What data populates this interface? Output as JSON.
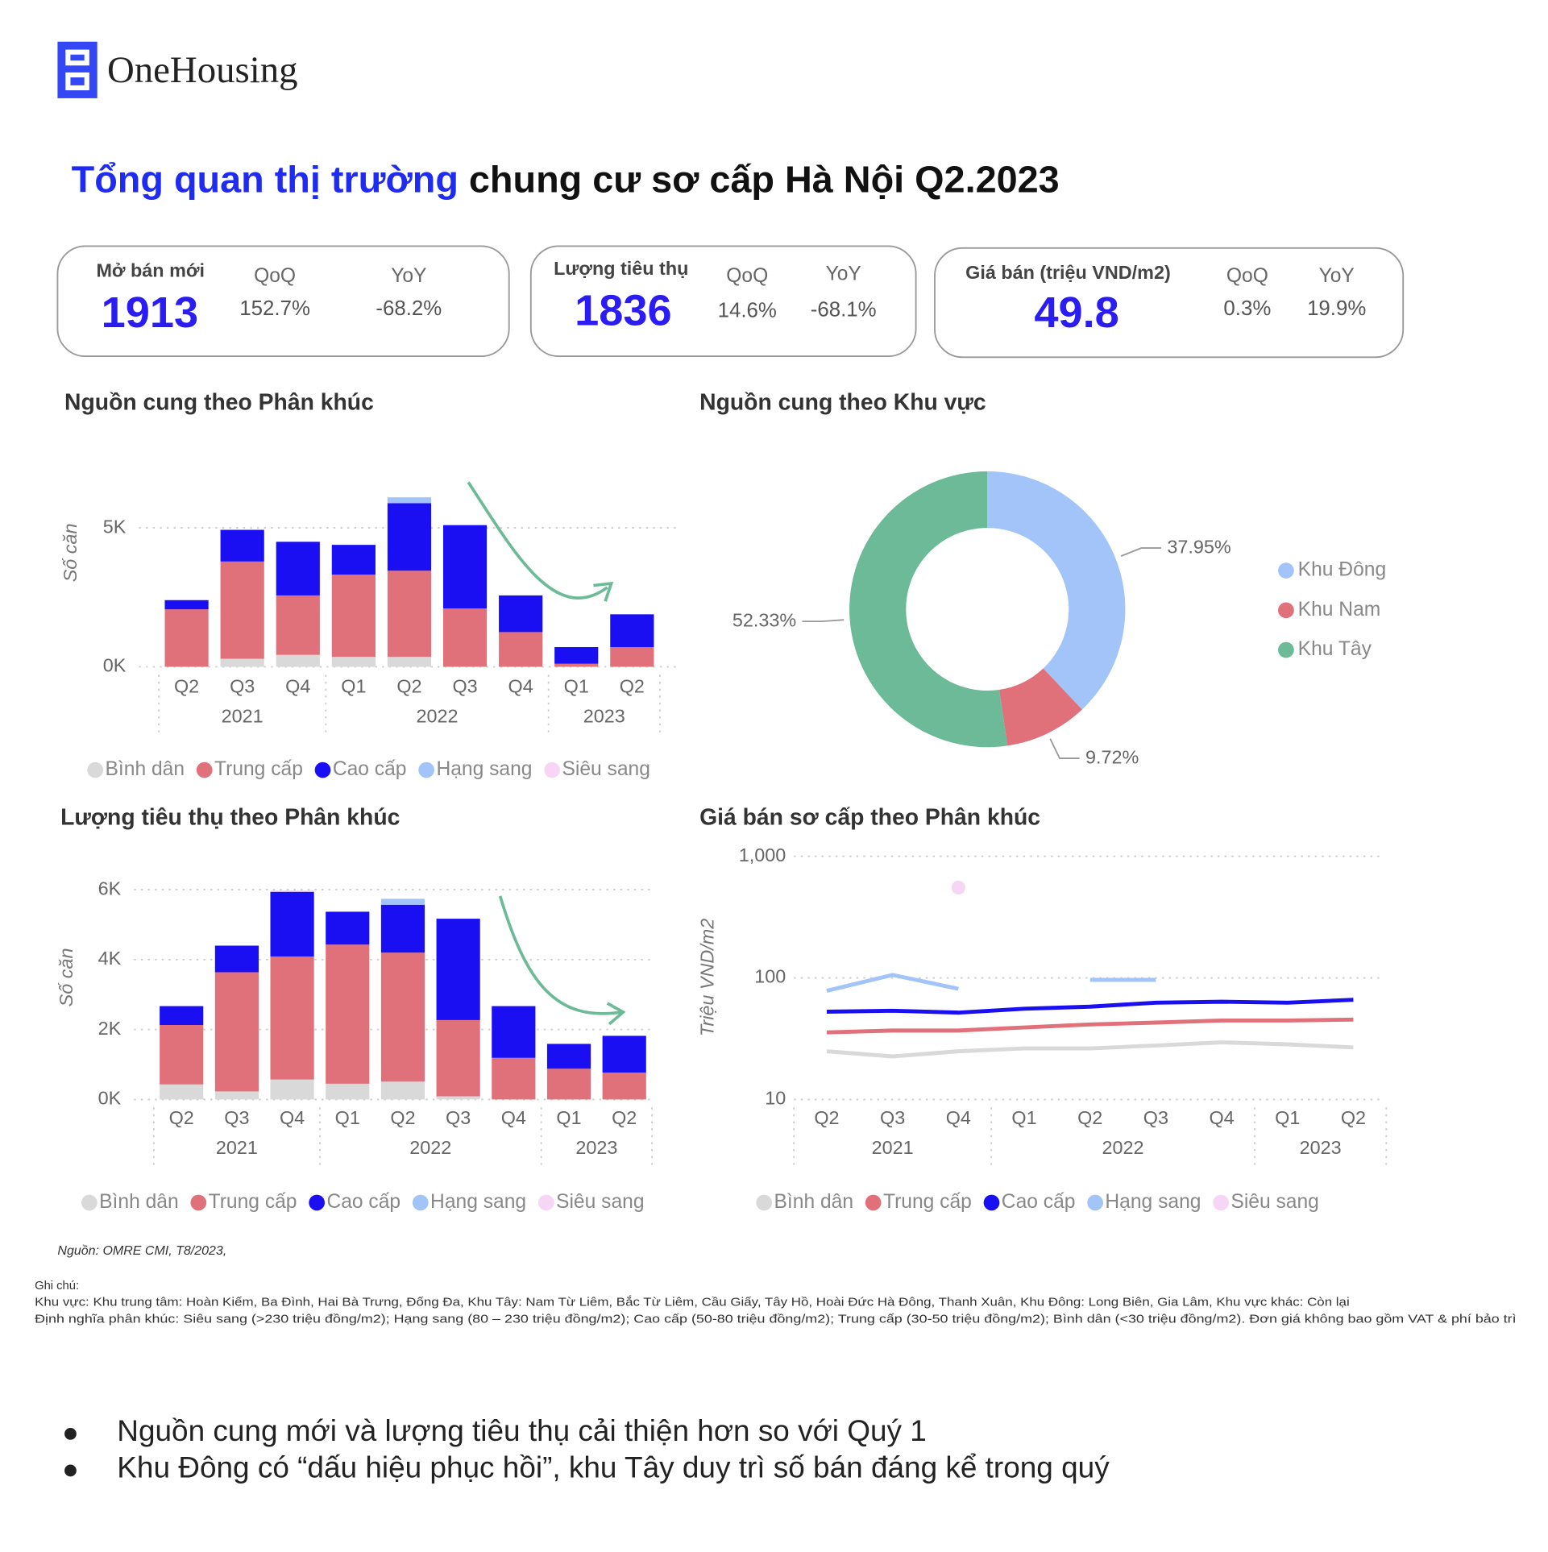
{
  "header": {
    "brand": "OneHousing",
    "title_highlight": "Tổng quan thị trường",
    "title_rest": " chung cư sơ cấp Hà Nội Q2.2023"
  },
  "kpis": [
    {
      "label": "Mở bán mới",
      "value": 1913,
      "qoq_label": "QoQ",
      "qoq": "152.7%",
      "yoy_label": "YoY",
      "yoy": "-68.2%"
    },
    {
      "label": "Lượng tiêu thụ",
      "value": 1836,
      "qoq_label": "QoQ",
      "qoq": "14.6%",
      "yoy_label": "YoY",
      "yoy": "-68.1%"
    },
    {
      "label": "Giá bán (triệu VND/m2)",
      "value": 49.8,
      "qoq_label": "QoQ",
      "qoq": "0.3%",
      "yoy_label": "YoY",
      "yoy": "19.9%"
    }
  ],
  "chart_data": [
    {
      "type": "bar",
      "stacked": true,
      "title": "Nguồn cung theo Phân khúc",
      "y_label": "Số căn",
      "categories": [
        "Q2",
        "Q3",
        "Q4",
        "Q1",
        "Q2",
        "Q3",
        "Q4",
        "Q1",
        "Q2"
      ],
      "category_years": [
        "2021",
        "2021",
        "2021",
        "2022",
        "2022",
        "2022",
        "2022",
        "2023",
        "2023"
      ],
      "series": [
        {
          "name": "Bình dân",
          "color": "#d9d9d9",
          "values": [
            0,
            290,
            430,
            360,
            360,
            0,
            0,
            0,
            0
          ]
        },
        {
          "name": "Trung cấp",
          "color": "#e0707a",
          "values": [
            2070,
            3500,
            2140,
            2960,
            3100,
            2100,
            1250,
            110,
            710
          ]
        },
        {
          "name": "Cao cấp",
          "color": "#1a0ff2",
          "values": [
            330,
            1140,
            1930,
            1070,
            2430,
            3000,
            1320,
            600,
            1180
          ]
        },
        {
          "name": "Hạng sang",
          "color": "#a3c4f8",
          "values": [
            0,
            0,
            0,
            0,
            210,
            0,
            0,
            0,
            0
          ]
        },
        {
          "name": "Siêu sang",
          "color": "#f7d6f5",
          "values": [
            0,
            0,
            0,
            0,
            0,
            0,
            0,
            0,
            0
          ]
        }
      ],
      "ylim": [
        0,
        6500
      ],
      "yticks": [
        {
          "value": 0,
          "label": "0K"
        },
        {
          "value": 5000,
          "label": "5K"
        }
      ],
      "grid": true
    },
    {
      "type": "donut",
      "title": "Nguồn cung theo Khu vực",
      "categories": [
        "Khu Đông",
        "Khu Nam",
        "Khu Tây"
      ],
      "values": [
        37.95,
        9.72,
        52.33
      ],
      "value_labels": [
        "37.95%",
        "9.72%",
        "52.33%"
      ],
      "colors": [
        "#a3c4f8",
        "#e0707a",
        "#6cba98"
      ]
    },
    {
      "type": "bar",
      "stacked": true,
      "title": "Lượng tiêu thụ theo Phân khúc",
      "y_label": "Số căn",
      "categories": [
        "Q2",
        "Q3",
        "Q4",
        "Q1",
        "Q2",
        "Q3",
        "Q4",
        "Q1",
        "Q2"
      ],
      "category_years": [
        "2021",
        "2021",
        "2021",
        "2022",
        "2022",
        "2022",
        "2022",
        "2023",
        "2023"
      ],
      "series": [
        {
          "name": "Bình dân",
          "color": "#d9d9d9",
          "values": [
            430,
            230,
            570,
            450,
            510,
            90,
            0,
            0,
            0
          ]
        },
        {
          "name": "Trung cấp",
          "color": "#e0707a",
          "values": [
            1700,
            3410,
            3520,
            3980,
            3690,
            2180,
            1190,
            880,
            770
          ]
        },
        {
          "name": "Cao cấp",
          "color": "#1a0ff2",
          "values": [
            540,
            760,
            1850,
            940,
            1370,
            2900,
            1480,
            710,
            1050
          ]
        },
        {
          "name": "Hạng sang",
          "color": "#a3c4f8",
          "values": [
            0,
            0,
            0,
            0,
            170,
            0,
            0,
            0,
            0
          ]
        },
        {
          "name": "Siêu sang",
          "color": "#f7d6f5",
          "values": [
            0,
            0,
            40,
            0,
            0,
            0,
            0,
            0,
            0
          ]
        }
      ],
      "ylim": [
        0,
        6500
      ],
      "yticks": [
        {
          "value": 0,
          "label": "0K"
        },
        {
          "value": 2000,
          "label": "2K"
        },
        {
          "value": 4000,
          "label": "4K"
        },
        {
          "value": 6000,
          "label": "6K"
        }
      ],
      "grid": true
    },
    {
      "type": "line",
      "title": "Giá bán sơ cấp theo Phân khúc",
      "y_label": "Triệu VND/m2",
      "log_scale": true,
      "categories": [
        "Q2",
        "Q3",
        "Q4",
        "Q1",
        "Q2",
        "Q3",
        "Q4",
        "Q1",
        "Q2"
      ],
      "category_years": [
        "2021",
        "2021",
        "2021",
        "2022",
        "2022",
        "2022",
        "2022",
        "2023",
        "2023"
      ],
      "series": [
        {
          "name": "Bình dân",
          "color": "#d9d9d9",
          "values": [
            24.9,
            22.6,
            24.9,
            26.3,
            26.3,
            27.8,
            29.5,
            28.4,
            26.8
          ]
        },
        {
          "name": "Trung cấp",
          "color": "#e0707a",
          "values": [
            35.6,
            36.9,
            36.9,
            39.1,
            41.4,
            42.9,
            44.6,
            44.6,
            45.4
          ]
        },
        {
          "name": "Cao cấp",
          "color": "#1a0ff2",
          "values": [
            52.7,
            53.7,
            51.8,
            55.8,
            58,
            62.5,
            63.7,
            62.5,
            66.1
          ]
        },
        {
          "name": "Hạng sang",
          "color": "#a3c4f8",
          "values": [
            78.3,
            105.8,
            81.3,
            null,
            96.3,
            96.3,
            null,
            null,
            null
          ]
        },
        {
          "name": "Siêu sang",
          "color": "#f7d6f5",
          "values": [
            null,
            null,
            553,
            null,
            null,
            null,
            null,
            null,
            null
          ]
        }
      ],
      "ylim": [
        10,
        1000
      ],
      "yticks": [
        {
          "value": 1000,
          "label": "1,000"
        },
        100,
        10
      ],
      "grid": true
    }
  ],
  "source": "Nguồn: OMRE CMI, T8/2023,",
  "notes": {
    "heading": "Ghi chú:",
    "lines": [
      "Khu vực: Khu trung tâm: Hoàn Kiếm, Ba Đình, Hai Bà Trưng, Đống Đa, Khu Tây: Nam Từ Liêm, Bắc Từ Liêm, Cầu Giấy, Tây Hồ, Hoài Đức Hà Đông, Thanh Xuân, Khu Đông: Long Biên, Gia Lâm, Khu vực khác: Còn lại",
      "Định nghĩa phân khúc: Siêu sang (>230 triệu đồng/m2); Hạng sang (80 – 230 triệu đồng/m2); Cao cấp (50-80 triệu đồng/m2); Trung cấp (30-50 triệu đồng/m2); Bình dân (<30 triệu đồng/m2). Đơn giá không bao gồm VAT & phí bảo trì"
    ]
  },
  "bullets": [
    "Nguồn cung mới và lượng tiêu thụ cải thiện hơn so với Quý 1",
    "Khu Đông có “dấu hiệu phục hồi”, khu Tây duy trì số bán đáng kể trong quý"
  ]
}
